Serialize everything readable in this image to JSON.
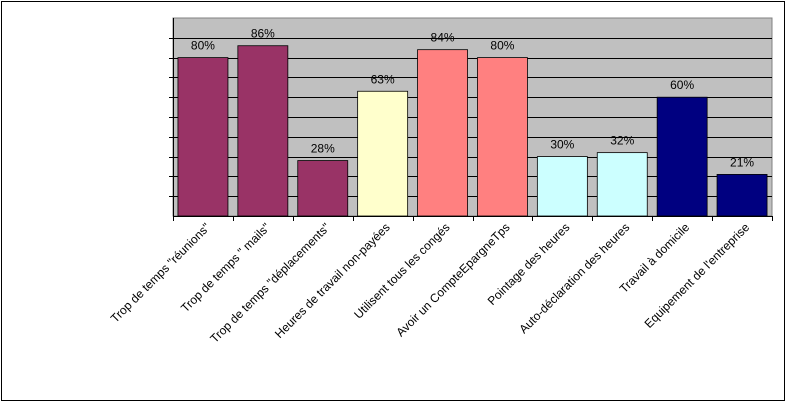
{
  "chart_data": {
    "type": "bar",
    "categories": [
      "Trop de temps \"réunions\"",
      "Trop de temps \" mails\"",
      "Trop de temps \"déplacements\"",
      "Heures de travail non-payées",
      "Utilisent tous les congés",
      "Avoir un CompteEpargneTps",
      "Pointage des heures",
      "Auto-déclaration des heures",
      "Travail à domicile",
      "Equipement de l'entreprise"
    ],
    "values": [
      80,
      86,
      28,
      63,
      84,
      80,
      30,
      32,
      60,
      21
    ],
    "data_labels": [
      "80%",
      "86%",
      "28%",
      "63%",
      "84%",
      "80%",
      "30%",
      "32%",
      "60%",
      "21%"
    ],
    "colors": [
      "#993366",
      "#993366",
      "#993366",
      "#ffffcc",
      "#ff8080",
      "#ff8080",
      "#ccffff",
      "#ccffff",
      "#000080",
      "#000080"
    ],
    "ylim": [
      0,
      100
    ],
    "grid": true,
    "title": "",
    "xlabel": "",
    "ylabel": ""
  }
}
